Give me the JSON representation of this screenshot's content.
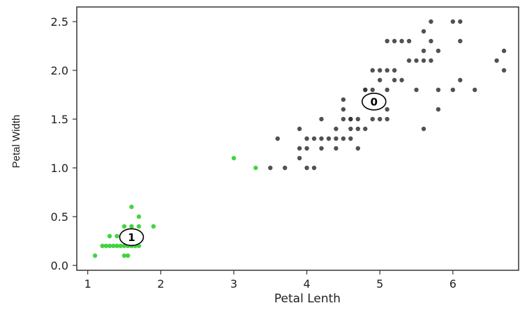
{
  "chart_data": {
    "type": "scatter",
    "title": "",
    "xlabel": "Petal Lenth",
    "ylabel": "Petal Width",
    "xlim": [
      0.85,
      6.9
    ],
    "ylim": [
      -0.05,
      2.65
    ],
    "xticks": [
      1,
      2,
      3,
      4,
      5,
      6
    ],
    "yticks": [
      0.0,
      0.5,
      1.0,
      1.5,
      2.0,
      2.5
    ],
    "xtick_labels": [
      "1",
      "2",
      "3",
      "4",
      "5",
      "6"
    ],
    "ytick_labels": [
      "0.0",
      "0.5",
      "1.0",
      "1.5",
      "2.0",
      "2.5"
    ],
    "grid": false,
    "series": [
      {
        "color": "#22cc22",
        "points": [
          [
            1.1,
            0.1
          ],
          [
            1.2,
            0.2
          ],
          [
            1.25,
            0.2
          ],
          [
            1.3,
            0.2
          ],
          [
            1.35,
            0.2
          ],
          [
            1.4,
            0.2
          ],
          [
            1.45,
            0.2
          ],
          [
            1.5,
            0.2
          ],
          [
            1.55,
            0.2
          ],
          [
            1.6,
            0.2
          ],
          [
            1.65,
            0.2
          ],
          [
            1.7,
            0.2
          ],
          [
            1.3,
            0.3
          ],
          [
            1.4,
            0.3
          ],
          [
            1.5,
            0.3
          ],
          [
            1.7,
            0.3
          ],
          [
            1.5,
            0.1
          ],
          [
            1.55,
            0.1
          ],
          [
            1.5,
            0.4
          ],
          [
            1.6,
            0.4
          ],
          [
            1.7,
            0.4
          ],
          [
            1.9,
            0.4
          ],
          [
            1.7,
            0.5
          ],
          [
            1.6,
            0.6
          ],
          [
            3.0,
            1.1
          ],
          [
            3.3,
            1.0
          ]
        ]
      },
      {
        "color": "#333333",
        "points": [
          [
            3.5,
            1.0
          ],
          [
            3.7,
            1.0
          ],
          [
            3.6,
            1.3
          ],
          [
            3.9,
            1.1
          ],
          [
            3.9,
            1.2
          ],
          [
            3.9,
            1.4
          ],
          [
            4.0,
            1.0
          ],
          [
            4.1,
            1.0
          ],
          [
            4.0,
            1.2
          ],
          [
            4.0,
            1.3
          ],
          [
            4.1,
            1.3
          ],
          [
            4.2,
            1.3
          ],
          [
            4.3,
            1.3
          ],
          [
            4.4,
            1.3
          ],
          [
            4.5,
            1.3
          ],
          [
            4.6,
            1.3
          ],
          [
            4.2,
            1.2
          ],
          [
            4.4,
            1.2
          ],
          [
            4.7,
            1.2
          ],
          [
            4.4,
            1.4
          ],
          [
            4.6,
            1.4
          ],
          [
            4.7,
            1.4
          ],
          [
            4.2,
            1.5
          ],
          [
            4.5,
            1.5
          ],
          [
            4.6,
            1.5
          ],
          [
            4.7,
            1.5
          ],
          [
            4.5,
            1.6
          ],
          [
            4.5,
            1.7
          ],
          [
            4.6,
            1.5
          ],
          [
            4.8,
            1.4
          ],
          [
            4.8,
            1.8
          ],
          [
            4.9,
            1.5
          ],
          [
            5.0,
            1.5
          ],
          [
            5.1,
            1.5
          ],
          [
            5.1,
            1.6
          ],
          [
            4.9,
            1.8
          ],
          [
            5.0,
            1.7
          ],
          [
            4.8,
            1.8
          ],
          [
            5.2,
            1.9
          ],
          [
            5.1,
            1.8
          ],
          [
            5.0,
            1.9
          ],
          [
            5.0,
            2.0
          ],
          [
            5.1,
            2.0
          ],
          [
            5.2,
            2.0
          ],
          [
            4.9,
            2.0
          ],
          [
            5.3,
            1.9
          ],
          [
            5.5,
            1.8
          ],
          [
            5.5,
            2.1
          ],
          [
            5.6,
            2.1
          ],
          [
            5.7,
            2.1
          ],
          [
            5.6,
            2.2
          ],
          [
            5.7,
            2.3
          ],
          [
            5.1,
            2.3
          ],
          [
            5.2,
            2.3
          ],
          [
            5.3,
            2.3
          ],
          [
            5.6,
            2.4
          ],
          [
            5.6,
            1.4
          ],
          [
            5.8,
            1.6
          ],
          [
            5.8,
            1.8
          ],
          [
            6.0,
            1.8
          ],
          [
            6.1,
            1.9
          ],
          [
            5.4,
            2.1
          ],
          [
            5.8,
            2.2
          ],
          [
            6.1,
            2.3
          ],
          [
            6.3,
            1.8
          ],
          [
            5.7,
            2.5
          ],
          [
            6.0,
            2.5
          ],
          [
            6.1,
            2.5
          ],
          [
            6.6,
            2.1
          ],
          [
            6.7,
            2.2
          ],
          [
            6.7,
            2.0
          ],
          [
            5.4,
            2.3
          ]
        ]
      }
    ],
    "centroids": [
      {
        "label": "1",
        "x": 1.6,
        "y": 0.29
      },
      {
        "label": "0",
        "x": 4.92,
        "y": 1.68
      }
    ]
  }
}
